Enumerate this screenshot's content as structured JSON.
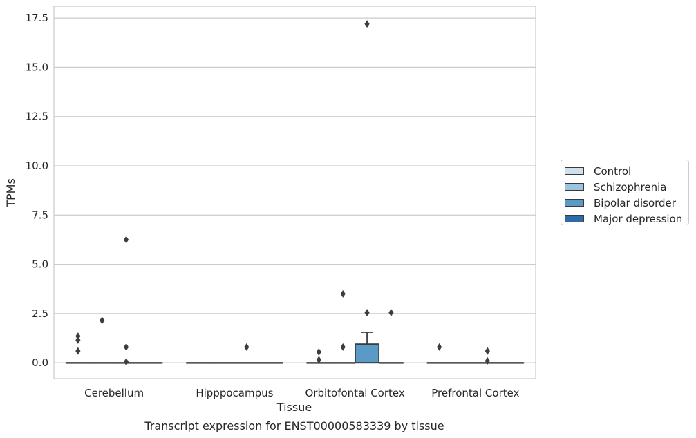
{
  "chart_data": {
    "type": "box",
    "caption": "Transcript expression for ENST00000583339 by tissue",
    "xlabel": "Tissue",
    "ylabel": "TPMs",
    "ylim": [
      -0.8,
      18.1
    ],
    "yticks": [
      0.0,
      2.5,
      5.0,
      7.5,
      10.0,
      12.5,
      15.0,
      17.5
    ],
    "ytick_labels": [
      "0.0",
      "2.5",
      "5.0",
      "7.5",
      "10.0",
      "12.5",
      "15.0",
      "17.5"
    ],
    "categories": [
      "Cerebellum",
      "Hipppocampus",
      "Orbitofontal Cortex",
      "Prefrontal Cortex"
    ],
    "grid": "horizontal",
    "legend_position": "right",
    "series": [
      {
        "name": "Control",
        "color": "#d0dfee",
        "boxes": [
          {
            "q1": 0,
            "median": 0,
            "q3": 0,
            "whisker_low": 0,
            "whisker_high": 0,
            "outliers": [
              0.6,
              1.15,
              1.35
            ]
          },
          {
            "q1": 0,
            "median": 0,
            "q3": 0,
            "whisker_low": 0,
            "whisker_high": 0,
            "outliers": []
          },
          {
            "q1": 0,
            "median": 0,
            "q3": 0,
            "whisker_low": 0,
            "whisker_high": 0,
            "outliers": [
              0.15,
              0.55
            ]
          },
          {
            "q1": 0,
            "median": 0,
            "q3": 0,
            "whisker_low": 0,
            "whisker_high": 0,
            "outliers": [
              0.8
            ]
          }
        ]
      },
      {
        "name": "Schizophrenia",
        "color": "#9cc4de",
        "boxes": [
          {
            "q1": 0,
            "median": 0,
            "q3": 0,
            "whisker_low": 0,
            "whisker_high": 0,
            "outliers": [
              2.15
            ]
          },
          {
            "q1": 0,
            "median": 0,
            "q3": 0,
            "whisker_low": 0,
            "whisker_high": 0,
            "outliers": []
          },
          {
            "q1": 0,
            "median": 0,
            "q3": 0,
            "whisker_low": 0,
            "whisker_high": 0,
            "outliers": [
              0.8,
              3.5
            ]
          },
          {
            "q1": 0,
            "median": 0,
            "q3": 0,
            "whisker_low": 0,
            "whisker_high": 0,
            "outliers": []
          }
        ]
      },
      {
        "name": "Bipolar disorder",
        "color": "#5a9ac6",
        "boxes": [
          {
            "q1": 0,
            "median": 0,
            "q3": 0,
            "whisker_low": 0,
            "whisker_high": 0,
            "outliers": [
              0.05,
              0.8,
              6.25
            ]
          },
          {
            "q1": 0,
            "median": 0,
            "q3": 0,
            "whisker_low": 0,
            "whisker_high": 0,
            "outliers": [
              0.8
            ]
          },
          {
            "q1": 0,
            "median": 0,
            "q3": 0.95,
            "whisker_low": 0,
            "whisker_high": 1.55,
            "outliers": [
              2.55,
              17.2
            ]
          },
          {
            "q1": 0,
            "median": 0,
            "q3": 0,
            "whisker_low": 0,
            "whisker_high": 0,
            "outliers": [
              0.1,
              0.6
            ]
          }
        ]
      },
      {
        "name": "Major depression",
        "color": "#2d6aa8",
        "boxes": [
          {
            "q1": 0,
            "median": 0,
            "q3": 0,
            "whisker_low": 0,
            "whisker_high": 0,
            "outliers": []
          },
          {
            "q1": 0,
            "median": 0,
            "q3": 0,
            "whisker_low": 0,
            "whisker_high": 0,
            "outliers": []
          },
          {
            "q1": 0,
            "median": 0,
            "q3": 0,
            "whisker_low": 0,
            "whisker_high": 0,
            "outliers": [
              2.55
            ]
          },
          {
            "q1": 0,
            "median": 0,
            "q3": 0,
            "whisker_low": 0,
            "whisker_high": 0,
            "outliers": []
          }
        ]
      }
    ]
  }
}
